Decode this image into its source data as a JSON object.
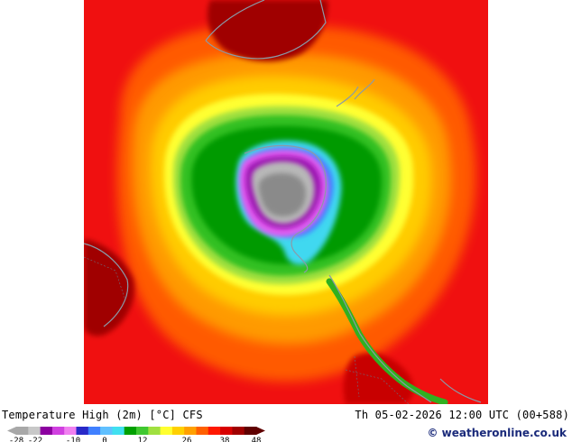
{
  "map": {
    "title": "Temperature High (2m) [°C] CFS",
    "valid_time": "Th 05-02-2026 12:00 UTC (00+588)",
    "credit": "© weatheronline.co.uk"
  },
  "colorbar": {
    "tick_labels": [
      "-28",
      "-22",
      "-10",
      "0",
      "12",
      "26",
      "38",
      "48"
    ],
    "tick_values": [
      -28,
      -22,
      -10,
      0,
      12,
      26,
      38,
      48
    ],
    "range": [
      -28,
      48
    ],
    "colors": [
      "#a8a8a8",
      "#c8c8c8",
      "#8c00a0",
      "#d040e0",
      "#f080f0",
      "#2828c8",
      "#4080ff",
      "#60c0ff",
      "#40e0f0",
      "#00a000",
      "#40c830",
      "#a0e040",
      "#ffff30",
      "#ffd000",
      "#ffa000",
      "#ff6000",
      "#ff1800",
      "#d80000",
      "#a00000",
      "#600000"
    ]
  }
}
